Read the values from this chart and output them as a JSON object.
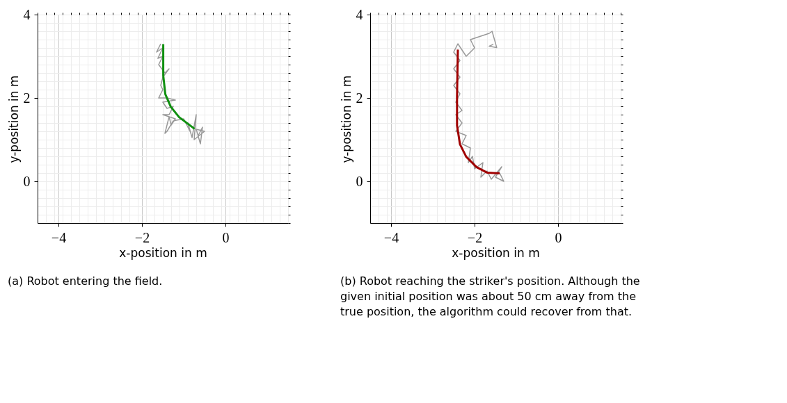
{
  "chart_data": [
    {
      "type": "line",
      "xlabel": "x-position in m",
      "ylabel": "y-position in m",
      "xlim": [
        -4.5,
        1.5
      ],
      "ylim": [
        -1,
        4
      ],
      "xticks": [
        -4,
        -2,
        0
      ],
      "yticks": [
        0,
        2,
        4
      ],
      "grid": true,
      "legend": false,
      "annotations": [
        "(a) Robot entering the field."
      ],
      "series": [
        {
          "color": "#999999",
          "x": [
            -1.55,
            -1.65,
            -1.5,
            -1.62,
            -1.5,
            -1.6,
            -1.45,
            -1.35,
            -1.5,
            -1.55,
            -1.5,
            -1.6,
            -1.4,
            -1.2,
            -1.5,
            -1.4,
            -1.25,
            -1.35,
            -1.5,
            -1.2,
            -1.3,
            -1.35,
            -1.45,
            -1.4,
            -1.25,
            -1.0,
            -0.85,
            -0.9,
            -0.8,
            -0.7,
            -0.75,
            -0.5,
            -0.7,
            -0.6,
            -0.55,
            -0.65
          ],
          "values": [
            3.3,
            3.1,
            3.2,
            2.95,
            3.0,
            2.8,
            2.6,
            2.7,
            2.5,
            2.3,
            2.2,
            2.0,
            2.0,
            1.95,
            1.9,
            1.75,
            1.8,
            1.6,
            1.6,
            1.5,
            1.35,
            1.55,
            1.15,
            1.2,
            1.45,
            1.5,
            1.2,
            1.4,
            1.05,
            1.6,
            1.0,
            1.2,
            1.25,
            0.9,
            1.3,
            1.1
          ]
        },
        {
          "color": "#109010",
          "x": [
            -1.49,
            -1.49,
            -1.44,
            -1.31,
            -1.11,
            -0.74
          ],
          "values": [
            3.29,
            2.54,
            2.09,
            1.79,
            1.54,
            1.26
          ]
        }
      ]
    },
    {
      "type": "line",
      "xlabel": "x-position in m",
      "ylabel": "y-position in m",
      "xlim": [
        -4.5,
        1.5
      ],
      "ylim": [
        -1,
        4
      ],
      "xticks": [
        -4,
        -2,
        0
      ],
      "yticks": [
        0,
        2,
        4
      ],
      "grid": true,
      "legend": false,
      "annotations": [
        "(b) Robot reaching the striker's position. Although the given initial position was about 50 cm away from the true position, the algorithm could recover from that."
      ],
      "series": [
        {
          "color": "#999999",
          "x": [
            -1.4,
            -1.3,
            -1.5,
            -1.35,
            -1.6,
            -1.7,
            -1.85,
            -1.8,
            -2.0,
            -2.05,
            -2.15,
            -2.1,
            -2.3,
            -2.2,
            -2.45,
            -2.3,
            -2.45,
            -2.3,
            -2.45,
            -2.35,
            -2.5,
            -2.35,
            -2.5,
            -2.35,
            -2.5,
            -2.4,
            -2.2,
            -2.0,
            -2.1,
            -1.8,
            -1.65,
            -1.58,
            -1.47,
            -1.65,
            -1.55
          ],
          "values": [
            0.2,
            0.0,
            0.1,
            0.35,
            0.05,
            0.25,
            0.1,
            0.45,
            0.3,
            0.6,
            0.45,
            0.8,
            0.9,
            1.1,
            1.2,
            1.4,
            1.6,
            1.7,
            1.9,
            2.1,
            2.3,
            2.5,
            2.7,
            2.9,
            3.1,
            3.3,
            3.0,
            3.2,
            3.4,
            3.5,
            3.55,
            3.6,
            3.21,
            3.24,
            3.29
          ]
        },
        {
          "color": "#a00000",
          "x": [
            -2.4,
            -2.42,
            -2.42,
            -2.35,
            -2.2,
            -1.95,
            -1.7,
            -1.4
          ],
          "values": [
            3.16,
            2.04,
            1.34,
            0.89,
            0.59,
            0.34,
            0.21,
            0.19
          ]
        }
      ]
    }
  ]
}
